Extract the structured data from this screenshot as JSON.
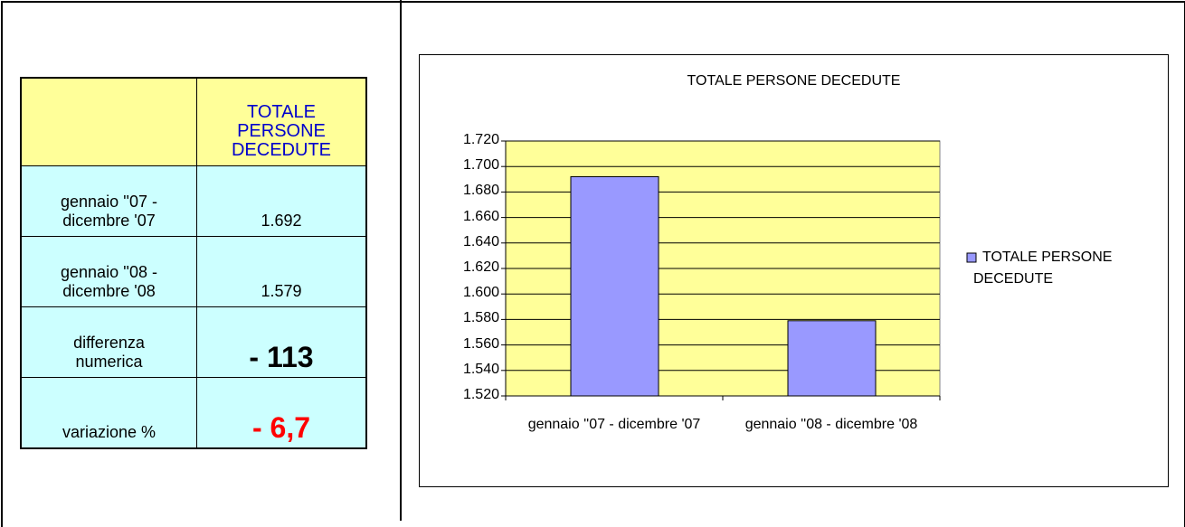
{
  "table": {
    "header": [
      "",
      "TOTALE PERSONE DECEDUTE"
    ],
    "rows": [
      [
        "gennaio ''07 - dicembre '07",
        "1.692"
      ],
      [
        "gennaio ''08 - dicembre '08",
        "1.579"
      ],
      [
        "differenza numerica",
        "- 113"
      ],
      [
        "variazione %",
        "- 6,7"
      ]
    ]
  },
  "chart_data": {
    "type": "bar",
    "title": "TOTALE PERSONE DECEDUTE",
    "categories": [
      "gennaio ''07 - dicembre '07",
      "gennaio ''08 - dicembre '08"
    ],
    "series": [
      {
        "name": "TOTALE PERSONE DECEDUTE",
        "color": "#9999ff",
        "values": [
          1692,
          1579
        ]
      }
    ],
    "ylim": [
      1520,
      1720
    ],
    "yticks": [
      {
        "value": 1520,
        "label": "1.520"
      },
      {
        "value": 1540,
        "label": "1.540"
      },
      {
        "value": 1560,
        "label": "1.560"
      },
      {
        "value": 1580,
        "label": "1.580"
      },
      {
        "value": 1600,
        "label": "1.600"
      },
      {
        "value": 1620,
        "label": "1.620"
      },
      {
        "value": 1640,
        "label": "1.640"
      },
      {
        "value": 1660,
        "label": "1.660"
      },
      {
        "value": 1680,
        "label": "1.680"
      },
      {
        "value": 1700,
        "label": "1.700"
      },
      {
        "value": 1720,
        "label": "1.720"
      }
    ],
    "grid": true,
    "plot_color": "#ffff99",
    "legend": "right"
  }
}
